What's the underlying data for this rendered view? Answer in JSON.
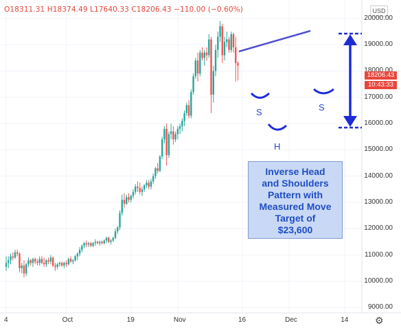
{
  "header": {
    "ohlc_text": "O18311.31 H18374.49 L17640.33 C18206.43 −110.00 (−0.60%)",
    "currency": "USD"
  },
  "price_badges": {
    "last_price": "18206.43",
    "countdown": "10:43:33"
  },
  "annotation": {
    "lines": [
      "Inverse Head",
      "and Shoulders",
      "Pattern with",
      "Measured Move",
      "Target of",
      "$23,600"
    ]
  },
  "pattern_labels": {
    "left_shoulder": "S",
    "head": "H",
    "right_shoulder": "S"
  },
  "colors": {
    "up": "#26a69a",
    "down": "#ef5350",
    "annotation_blue": "#1d2cd6",
    "neckline": "#5050d0"
  },
  "icons": {
    "settings": "gear-icon"
  },
  "chart_data": {
    "type": "candlestick",
    "ylim": [
      8800,
      20700
    ],
    "yticks": [
      "20000.00",
      "19000.00",
      "18000.00",
      "17000.00",
      "16000.00",
      "15000.00",
      "14000.00",
      "13000.00",
      "12000.00",
      "11000.00",
      "10000.00",
      "9000.00"
    ],
    "yticks_values": [
      20000,
      19000,
      18000,
      17000,
      16000,
      15000,
      14000,
      13000,
      12000,
      11000,
      10000,
      9000
    ],
    "xticks": [
      "4",
      "Oct",
      "19",
      "Nov",
      "16",
      "Dec",
      "14"
    ],
    "xticks_index": [
      0,
      27,
      56,
      77,
      106,
      127,
      152
    ],
    "candles": [
      [
        10550,
        10950,
        10400,
        10700
      ],
      [
        10700,
        10950,
        10500,
        10800
      ],
      [
        10800,
        11050,
        10650,
        10950
      ],
      [
        10950,
        11100,
        10800,
        10900
      ],
      [
        10900,
        11200,
        10850,
        11100
      ],
      [
        11100,
        11200,
        10950,
        11050
      ],
      [
        11050,
        11100,
        10350,
        10500
      ],
      [
        10500,
        10700,
        10300,
        10600
      ],
      [
        10600,
        10800,
        10150,
        10300
      ],
      [
        10300,
        10700,
        10200,
        10650
      ],
      [
        10650,
        10900,
        10550,
        10800
      ],
      [
        10800,
        10850,
        10600,
        10700
      ],
      [
        10700,
        10900,
        10550,
        10850
      ],
      [
        10850,
        10900,
        10650,
        10750
      ],
      [
        10750,
        10850,
        10600,
        10700
      ],
      [
        10700,
        10950,
        10600,
        10850
      ],
      [
        10850,
        10950,
        10650,
        10700
      ],
      [
        10700,
        10900,
        10550,
        10650
      ],
      [
        10650,
        10850,
        10550,
        10800
      ],
      [
        10800,
        10900,
        10650,
        10750
      ],
      [
        10750,
        11000,
        10650,
        10900
      ],
      [
        10900,
        10950,
        10550,
        10600
      ],
      [
        10600,
        10700,
        10400,
        10550
      ],
      [
        10550,
        10700,
        10450,
        10650
      ],
      [
        10650,
        10750,
        10550,
        10700
      ],
      [
        10700,
        10750,
        10550,
        10600
      ],
      [
        10600,
        10750,
        10500,
        10700
      ],
      [
        10700,
        10800,
        10550,
        10650
      ],
      [
        10650,
        10900,
        10600,
        10850
      ],
      [
        10850,
        10950,
        10700,
        10750
      ],
      [
        10750,
        10850,
        10650,
        10800
      ],
      [
        10800,
        11000,
        10750,
        10950
      ],
      [
        10950,
        11100,
        10800,
        11050
      ],
      [
        11050,
        11300,
        10950,
        11200
      ],
      [
        11200,
        11400,
        11100,
        11350
      ],
      [
        11350,
        11500,
        11250,
        11450
      ],
      [
        11450,
        11550,
        11300,
        11400
      ],
      [
        11400,
        11500,
        11300,
        11450
      ],
      [
        11450,
        11500,
        11300,
        11350
      ],
      [
        11350,
        11500,
        11300,
        11450
      ],
      [
        11450,
        11600,
        11350,
        11500
      ],
      [
        11500,
        11550,
        11400,
        11450
      ],
      [
        11450,
        11550,
        11350,
        11500
      ],
      [
        11500,
        11550,
        11400,
        11450
      ],
      [
        11450,
        11600,
        11400,
        11550
      ],
      [
        11550,
        11700,
        11450,
        11650
      ],
      [
        11650,
        11700,
        11450,
        11500
      ],
      [
        11500,
        11600,
        11400,
        11550
      ],
      [
        11550,
        11700,
        11500,
        11650
      ],
      [
        11650,
        12000,
        11600,
        11900
      ],
      [
        11900,
        12100,
        11800,
        12050
      ],
      [
        12050,
        12700,
        11950,
        12600
      ],
      [
        12600,
        13300,
        12500,
        13100
      ],
      [
        13100,
        13350,
        12800,
        12950
      ],
      [
        12950,
        13300,
        12900,
        13200
      ],
      [
        13200,
        13350,
        13000,
        13100
      ],
      [
        13100,
        13300,
        13000,
        13250
      ],
      [
        13250,
        13500,
        13150,
        13400
      ],
      [
        13400,
        13700,
        13300,
        13600
      ],
      [
        13600,
        13800,
        13400,
        13550
      ],
      [
        13550,
        13750,
        13300,
        13400
      ],
      [
        13400,
        13600,
        13250,
        13500
      ],
      [
        13500,
        13700,
        13400,
        13650
      ],
      [
        13650,
        13850,
        13550,
        13750
      ],
      [
        13750,
        13850,
        13500,
        13600
      ],
      [
        13600,
        13900,
        13500,
        13800
      ],
      [
        13800,
        14100,
        13700,
        14000
      ],
      [
        14000,
        14350,
        13900,
        14300
      ],
      [
        14300,
        14500,
        14100,
        14200
      ],
      [
        14200,
        14800,
        14150,
        14750
      ],
      [
        14750,
        15500,
        14650,
        15400
      ],
      [
        15400,
        15900,
        15250,
        15800
      ],
      [
        15800,
        16000,
        14400,
        14800
      ],
      [
        14800,
        15700,
        14700,
        15600
      ],
      [
        15600,
        16000,
        15400,
        15700
      ],
      [
        15700,
        15900,
        15200,
        15400
      ],
      [
        15400,
        15700,
        15300,
        15600
      ],
      [
        15600,
        15900,
        15400,
        15800
      ],
      [
        15800,
        16000,
        15600,
        15900
      ],
      [
        15900,
        16200,
        15700,
        16100
      ],
      [
        16100,
        16500,
        15900,
        16400
      ],
      [
        16400,
        16800,
        16300,
        16700
      ],
      [
        16700,
        16900,
        16200,
        16300
      ],
      [
        16300,
        17300,
        16200,
        17200
      ],
      [
        17200,
        17900,
        17100,
        17800
      ],
      [
        17800,
        18500,
        17700,
        18400
      ],
      [
        18400,
        18700,
        17600,
        17900
      ],
      [
        17900,
        18800,
        17800,
        18700
      ],
      [
        18700,
        18900,
        18400,
        18500
      ],
      [
        18500,
        18800,
        18200,
        18700
      ],
      [
        18700,
        18900,
        18400,
        18600
      ],
      [
        18600,
        19400,
        18500,
        19200
      ],
      [
        19200,
        19300,
        16400,
        17100
      ],
      [
        17100,
        18200,
        16800,
        18000
      ],
      [
        18000,
        19000,
        17800,
        18800
      ],
      [
        18800,
        19500,
        18500,
        19300
      ],
      [
        19300,
        19900,
        19100,
        19700
      ],
      [
        19700,
        19800,
        18300,
        18600
      ],
      [
        18600,
        19300,
        18400,
        19100
      ],
      [
        19100,
        19500,
        18900,
        19200
      ],
      [
        19200,
        19300,
        18700,
        18800
      ],
      [
        18800,
        19500,
        18700,
        19400
      ],
      [
        19400,
        19450,
        18700,
        18900
      ],
      [
        18900,
        19300,
        17600,
        18300
      ],
      [
        18300,
        18370,
        17640,
        18206
      ]
    ]
  }
}
